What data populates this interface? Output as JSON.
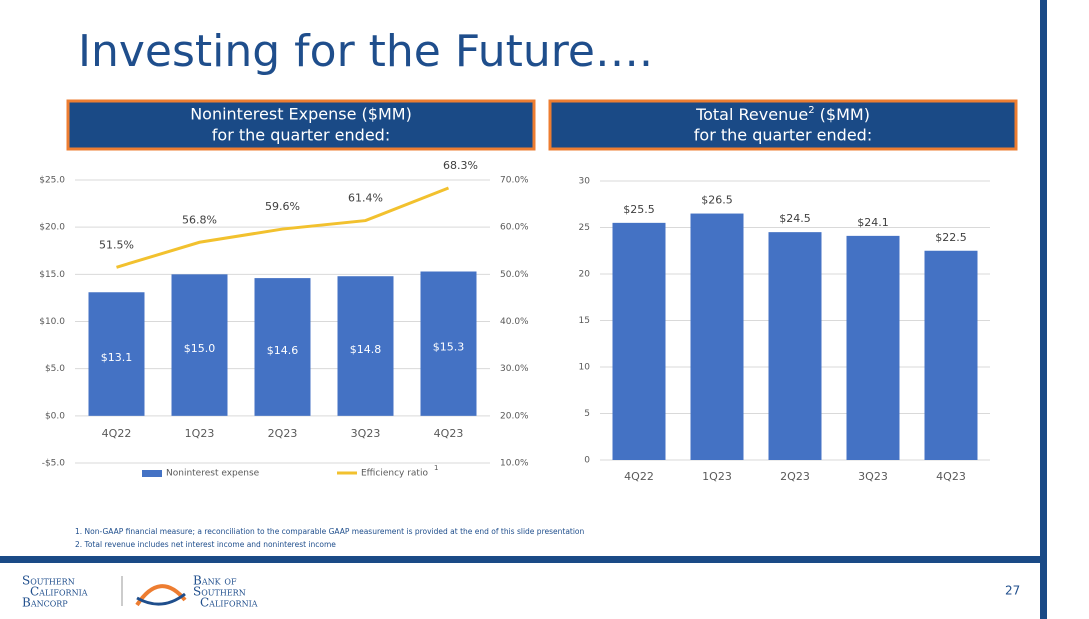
{
  "title": "Investing for the Future….",
  "footnotes": [
    "1.  Non-GAAP financial measure; a reconciliation to the comparable GAAP measurement is provided at the end of this slide presentation",
    "2.  Total revenue includes net interest income and noninterest income"
  ],
  "page_number": "27",
  "logos": {
    "bancorp": [
      "Southern",
      "California",
      "Bancorp"
    ],
    "bank": [
      "Bank of",
      "Southern",
      "California"
    ]
  },
  "chart_data": [
    {
      "type": "bar-line",
      "title": "Noninterest Expense ($MM)",
      "subtitle": "for the quarter ended:",
      "categories": [
        "4Q22",
        "1Q23",
        "2Q23",
        "3Q23",
        "4Q23"
      ],
      "series": [
        {
          "name": "Noninterest expense",
          "type": "bar",
          "color": "#4472c4",
          "values": [
            13.1,
            15.0,
            14.6,
            14.8,
            15.3
          ],
          "value_labels": [
            "$13.1",
            "$15.0",
            "$14.6",
            "$14.8",
            "$15.3"
          ]
        },
        {
          "name": "Efficiency ratio",
          "superscript": "1",
          "type": "line",
          "axis": "y2",
          "color": "#f2c12e",
          "values": [
            51.5,
            56.8,
            59.6,
            61.4,
            68.3
          ],
          "value_labels": [
            "51.5%",
            "56.8%",
            "59.6%",
            "61.4%",
            "68.3%"
          ]
        }
      ],
      "ylim": [
        -5,
        25
      ],
      "yticks": [
        {
          "value": -5,
          "label": "-$5.0"
        },
        {
          "value": 0,
          "label": "$0.0"
        },
        {
          "value": 5,
          "label": "$5.0"
        },
        {
          "value": 10,
          "label": "$10.0"
        },
        {
          "value": 15,
          "label": "$15.0"
        },
        {
          "value": 20,
          "label": "$20.0"
        },
        {
          "value": 25,
          "label": "$25.0"
        }
      ],
      "y2lim": [
        10,
        70
      ],
      "y2ticks": [
        {
          "value": 10,
          "label": "10.0%"
        },
        {
          "value": 20,
          "label": "20.0%"
        },
        {
          "value": 30,
          "label": "30.0%"
        },
        {
          "value": 40,
          "label": "40.0%"
        },
        {
          "value": 50,
          "label": "50.0%"
        },
        {
          "value": 60,
          "label": "60.0%"
        },
        {
          "value": 70,
          "label": "70.0%"
        }
      ],
      "grid": true,
      "legend": "bottom"
    },
    {
      "type": "bar",
      "title": "Total Revenue",
      "title_sup": "2",
      "title_suffix": " ($MM)",
      "subtitle": "for the quarter ended:",
      "categories": [
        "4Q22",
        "1Q23",
        "2Q23",
        "3Q23",
        "4Q23"
      ],
      "series": [
        {
          "name": "Total revenue",
          "type": "bar",
          "color": "#4472c4",
          "values": [
            25.5,
            26.5,
            24.5,
            24.1,
            22.5
          ],
          "value_labels": [
            "$25.5",
            "$26.5",
            "$24.5",
            "$24.1",
            "$22.5"
          ]
        }
      ],
      "ylim": [
        0,
        30
      ],
      "yticks": [
        0,
        5,
        10,
        15,
        20,
        25,
        30
      ],
      "grid": true
    }
  ]
}
